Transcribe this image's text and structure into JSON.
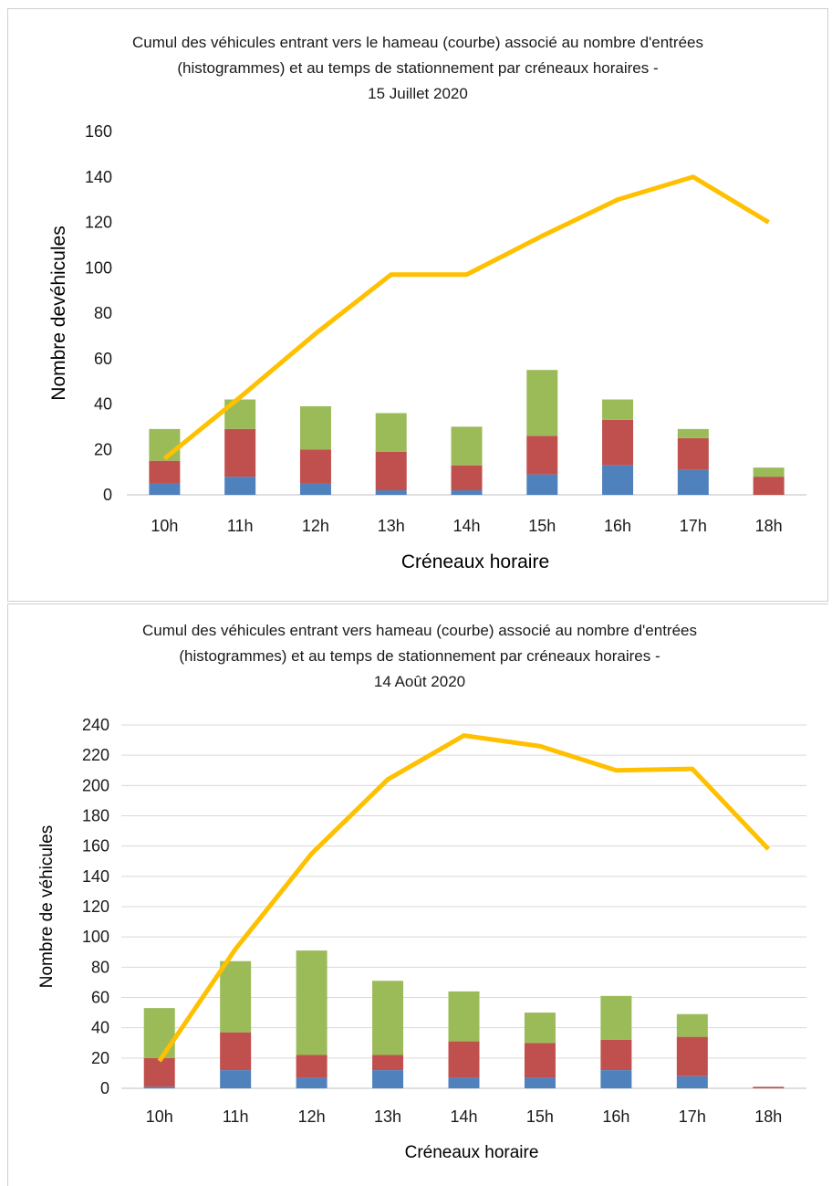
{
  "chart_data": [
    {
      "type": "bar",
      "title_lines": [
        "Cumul des véhicules entrant vers le hameau (courbe) associé au nombre d'entrées",
        "(histogrammes) et au temps de stationnement par créneaux horaires -",
        "15 Juillet 2020"
      ],
      "xlabel": "Créneaux horaire",
      "ylabel": "Nombre devéhicules",
      "categories": [
        "10h",
        "11h",
        "12h",
        "13h",
        "14h",
        "15h",
        "16h",
        "17h",
        "18h"
      ],
      "ylim": [
        0,
        160
      ],
      "yticks": [
        "0",
        "20",
        "40",
        "60",
        "80",
        "100",
        "120",
        "140",
        "160"
      ],
      "grid": false,
      "stack_series": [
        {
          "color": "#4f81bd",
          "values": [
            5,
            8,
            5,
            2,
            2,
            9,
            13,
            11,
            0
          ]
        },
        {
          "color": "#c0504d",
          "values": [
            10,
            21,
            15,
            17,
            11,
            17,
            20,
            14,
            8
          ]
        },
        {
          "color": "#9bbb59",
          "values": [
            14,
            13,
            19,
            17,
            17,
            29,
            9,
            4,
            4
          ]
        }
      ],
      "line_series": {
        "color": "#ffc000",
        "values": [
          16,
          43,
          71,
          97,
          97,
          114,
          130,
          140,
          120
        ]
      }
    },
    {
      "type": "bar",
      "title_lines": [
        "Cumul des véhicules entrant vers hameau (courbe) associé au nombre d'entrées",
        "(histogrammes) et au temps de stationnement par créneaux horaires -",
        "14 Août 2020"
      ],
      "xlabel": "Créneaux horaire",
      "ylabel": "Nombre de véhicules",
      "categories": [
        "10h",
        "11h",
        "12h",
        "13h",
        "14h",
        "15h",
        "16h",
        "17h",
        "18h"
      ],
      "ylim": [
        0,
        240
      ],
      "yticks": [
        "0",
        "20",
        "40",
        "60",
        "80",
        "100",
        "120",
        "140",
        "160",
        "180",
        "200",
        "220",
        "240"
      ],
      "grid": true,
      "stack_series": [
        {
          "color": "#4f81bd",
          "values": [
            1,
            12,
            7,
            12,
            7,
            7,
            12,
            8,
            0
          ]
        },
        {
          "color": "#c0504d",
          "values": [
            19,
            25,
            15,
            10,
            24,
            23,
            20,
            26,
            1
          ]
        },
        {
          "color": "#9bbb59",
          "values": [
            33,
            47,
            69,
            49,
            33,
            20,
            29,
            15,
            0
          ]
        }
      ],
      "line_series": {
        "color": "#ffc000",
        "values": [
          18,
          92,
          155,
          204,
          233,
          226,
          210,
          211,
          158
        ]
      }
    }
  ]
}
